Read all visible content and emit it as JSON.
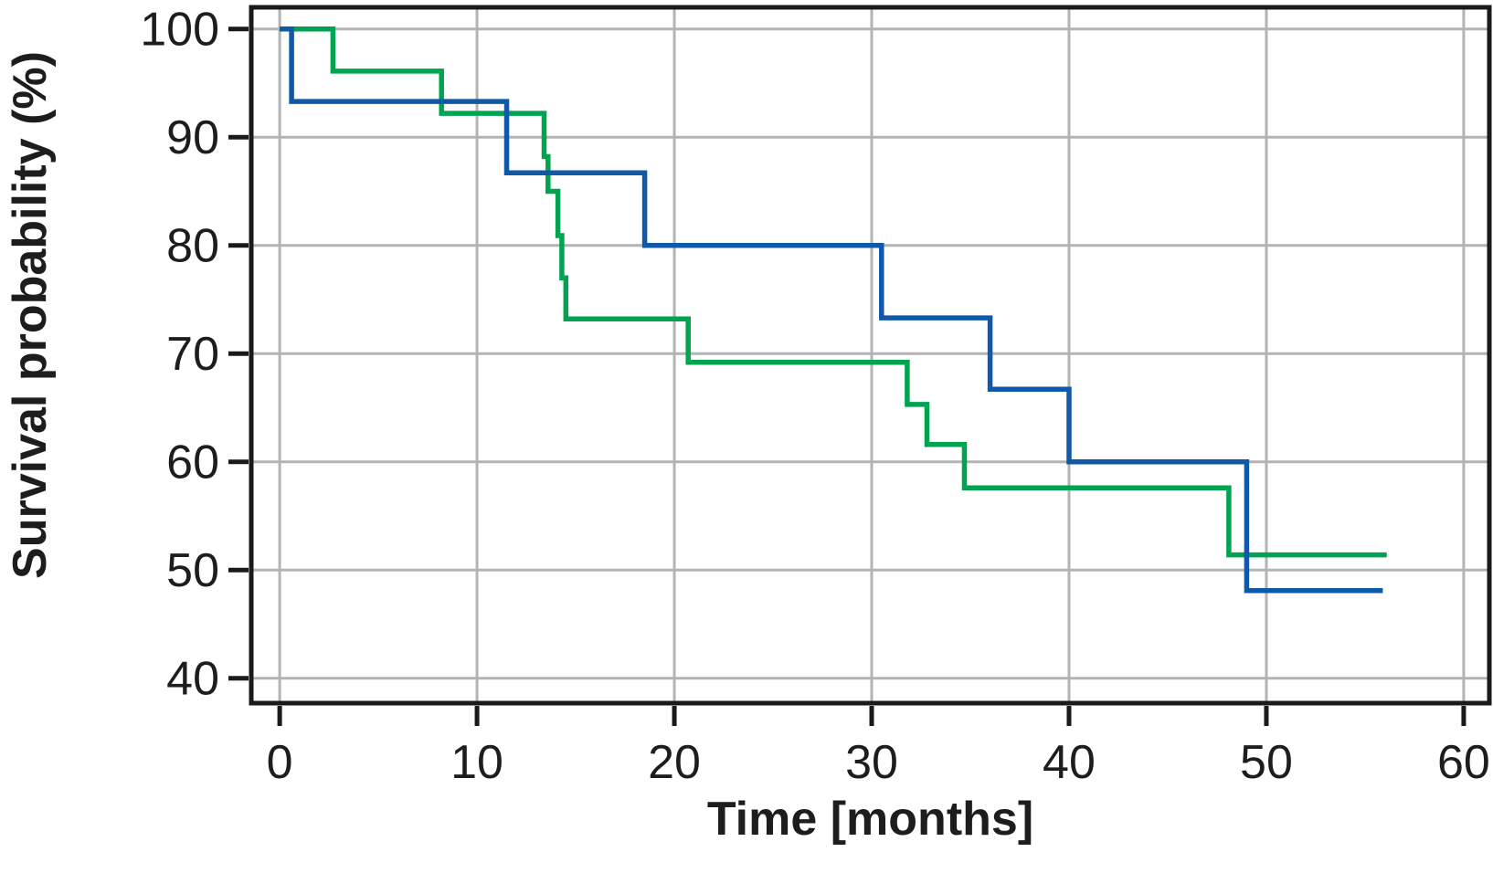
{
  "figure": {
    "background": "#ffffff"
  },
  "colors": {
    "grid": "#b3b3b3",
    "axis": "#1a1a1a",
    "tick_label": "#1d1d1b",
    "green_series": "#00A350",
    "blue_series": "#0F59A6"
  },
  "chart_data": {
    "type": "line",
    "variant": "kaplan_meier_step",
    "title": "",
    "xlabel": "Time [months]",
    "ylabel": "Survival probability (%)",
    "xlim": [
      -1.44,
      61.3
    ],
    "ylim": [
      37.7,
      102.0
    ],
    "xticks": [
      0,
      10,
      20,
      30,
      40,
      50,
      60
    ],
    "yticks": [
      40,
      50,
      60,
      70,
      80,
      90,
      100
    ],
    "grid": true,
    "legend_position": "none",
    "series": [
      {
        "name": "green-group",
        "color": "#00A350",
        "start": [
          0,
          100
        ],
        "steps": [
          [
            2.7,
            96.1
          ],
          [
            8.2,
            92.2
          ],
          [
            13.4,
            88.2
          ],
          [
            13.6,
            85.0
          ],
          [
            14.1,
            80.9
          ],
          [
            14.3,
            77.0
          ],
          [
            14.5,
            73.2
          ],
          [
            20.7,
            69.2
          ],
          [
            31.8,
            65.3
          ],
          [
            32.8,
            61.6
          ],
          [
            34.7,
            57.6
          ],
          [
            48.1,
            51.4
          ]
        ],
        "end_x": 56.1,
        "final_value": 51.4
      },
      {
        "name": "blue-group",
        "color": "#0F59A6",
        "start": [
          0,
          100
        ],
        "steps": [
          [
            0.6,
            93.3
          ],
          [
            11.5,
            86.7
          ],
          [
            18.5,
            80.0
          ],
          [
            30.5,
            73.3
          ],
          [
            36.0,
            66.7
          ],
          [
            40.0,
            60.0
          ],
          [
            49.0,
            48.1
          ]
        ],
        "end_x": 55.9,
        "final_value": 48.1
      }
    ]
  }
}
